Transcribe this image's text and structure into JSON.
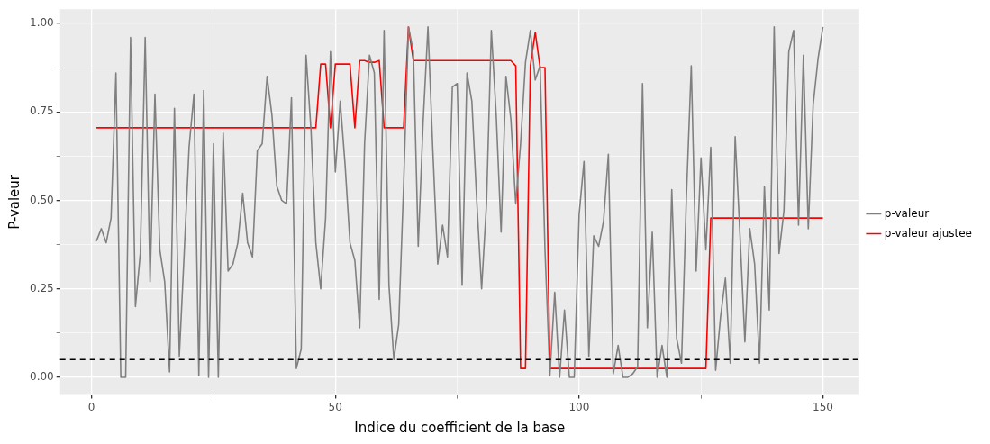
{
  "chart_data": {
    "type": "line",
    "xlabel": "Indice du coefficient de la base",
    "ylabel": "P-valeur",
    "x": [
      1,
      2,
      3,
      4,
      5,
      6,
      7,
      8,
      9,
      10,
      11,
      12,
      13,
      14,
      15,
      16,
      17,
      18,
      19,
      20,
      21,
      22,
      23,
      24,
      25,
      26,
      27,
      28,
      29,
      30,
      31,
      32,
      33,
      34,
      35,
      36,
      37,
      38,
      39,
      40,
      41,
      42,
      43,
      44,
      45,
      46,
      47,
      48,
      49,
      50,
      51,
      52,
      53,
      54,
      55,
      56,
      57,
      58,
      59,
      60,
      61,
      62,
      63,
      64,
      65,
      66,
      67,
      68,
      69,
      70,
      71,
      72,
      73,
      74,
      75,
      76,
      77,
      78,
      79,
      80,
      81,
      82,
      83,
      84,
      85,
      86,
      87,
      88,
      89,
      90,
      91,
      92,
      93,
      94,
      95,
      96,
      97,
      98,
      99,
      100,
      101,
      102,
      103,
      104,
      105,
      106,
      107,
      108,
      109,
      110,
      111,
      112,
      113,
      114,
      115,
      116,
      117,
      118,
      119,
      120,
      121,
      122,
      123,
      124,
      125,
      126,
      127,
      128,
      129,
      130,
      131,
      132,
      133,
      134,
      135,
      136,
      137,
      138,
      139,
      140,
      141,
      142,
      143,
      144,
      145,
      146,
      147,
      148,
      149,
      150
    ],
    "series": [
      {
        "name": "p-valeur",
        "color": "#808080",
        "values": [
          0.385,
          0.42,
          0.38,
          0.45,
          0.86,
          0.0,
          0.0,
          0.96,
          0.2,
          0.35,
          0.96,
          0.27,
          0.8,
          0.36,
          0.27,
          0.015,
          0.76,
          0.06,
          0.35,
          0.65,
          0.8,
          0.005,
          0.81,
          0.0,
          0.66,
          0.0,
          0.69,
          0.3,
          0.32,
          0.38,
          0.52,
          0.38,
          0.34,
          0.64,
          0.66,
          0.85,
          0.74,
          0.54,
          0.5,
          0.49,
          0.79,
          0.025,
          0.08,
          0.91,
          0.7,
          0.38,
          0.25,
          0.45,
          0.92,
          0.58,
          0.78,
          0.6,
          0.38,
          0.33,
          0.14,
          0.66,
          0.91,
          0.86,
          0.22,
          0.98,
          0.26,
          0.05,
          0.15,
          0.54,
          0.99,
          0.92,
          0.37,
          0.72,
          0.99,
          0.64,
          0.32,
          0.43,
          0.34,
          0.82,
          0.83,
          0.26,
          0.86,
          0.78,
          0.5,
          0.25,
          0.49,
          0.98,
          0.74,
          0.41,
          0.85,
          0.73,
          0.49,
          0.66,
          0.89,
          0.98,
          0.84,
          0.88,
          0.36,
          0.005,
          0.24,
          0.0,
          0.19,
          0.0,
          0.0,
          0.46,
          0.61,
          0.06,
          0.4,
          0.37,
          0.44,
          0.63,
          0.01,
          0.09,
          0.0,
          0.0,
          0.01,
          0.03,
          0.83,
          0.14,
          0.41,
          0.0,
          0.09,
          0.0,
          0.53,
          0.11,
          0.04,
          0.51,
          0.88,
          0.3,
          0.62,
          0.36,
          0.65,
          0.02,
          0.17,
          0.28,
          0.04,
          0.68,
          0.4,
          0.1,
          0.42,
          0.32,
          0.04,
          0.54,
          0.19,
          0.99,
          0.35,
          0.47,
          0.92,
          0.98,
          0.43,
          0.91,
          0.42,
          0.77,
          0.9,
          0.99
        ]
      },
      {
        "name": "p-valeur ajustee",
        "color": "#ff0000",
        "values": [
          0.705,
          0.705,
          0.705,
          0.705,
          0.705,
          0.705,
          0.705,
          0.705,
          0.705,
          0.705,
          0.705,
          0.705,
          0.705,
          0.705,
          0.705,
          0.705,
          0.705,
          0.705,
          0.705,
          0.705,
          0.705,
          0.705,
          0.705,
          0.705,
          0.705,
          0.705,
          0.705,
          0.705,
          0.705,
          0.705,
          0.705,
          0.705,
          0.705,
          0.705,
          0.705,
          0.705,
          0.705,
          0.705,
          0.705,
          0.705,
          0.705,
          0.705,
          0.705,
          0.705,
          0.705,
          0.705,
          0.885,
          0.885,
          0.705,
          0.885,
          0.885,
          0.885,
          0.885,
          0.705,
          0.895,
          0.895,
          0.89,
          0.89,
          0.895,
          0.705,
          0.705,
          0.705,
          0.705,
          0.705,
          0.99,
          0.895,
          0.895,
          0.895,
          0.895,
          0.895,
          0.895,
          0.895,
          0.895,
          0.895,
          0.895,
          0.895,
          0.895,
          0.895,
          0.895,
          0.895,
          0.895,
          0.895,
          0.895,
          0.895,
          0.895,
          0.895,
          0.88,
          0.025,
          0.025,
          0.88,
          0.975,
          0.875,
          0.875,
          0.025,
          0.025,
          0.025,
          0.025,
          0.025,
          0.025,
          0.025,
          0.025,
          0.025,
          0.025,
          0.025,
          0.025,
          0.025,
          0.025,
          0.025,
          0.025,
          0.025,
          0.025,
          0.025,
          0.025,
          0.025,
          0.025,
          0.025,
          0.025,
          0.025,
          0.025,
          0.025,
          0.025,
          0.025,
          0.025,
          0.025,
          0.025,
          0.025,
          0.45,
          0.45,
          0.45,
          0.45,
          0.45,
          0.45,
          0.45,
          0.45,
          0.45,
          0.45,
          0.45,
          0.45,
          0.45,
          0.45,
          0.45,
          0.45,
          0.45,
          0.45,
          0.45,
          0.45,
          0.45,
          0.45,
          0.45,
          0.45
        ]
      }
    ],
    "ref_lines": [
      {
        "axis": "y",
        "value": 0.05,
        "color": "#000000",
        "line_style": "dashed"
      }
    ],
    "xlim": [
      -6.45,
      157.45
    ],
    "ylim": [
      -0.05,
      1.04
    ],
    "xticks": [
      0,
      {
        "value": 25,
        "label": null
      },
      50,
      {
        "value": 75,
        "label": null
      },
      100,
      {
        "value": 125,
        "label": null
      },
      150
    ],
    "yticks": [
      {
        "value": 0,
        "label": "0.00"
      },
      {
        "value": 0.125,
        "label": null
      },
      {
        "value": 0.25,
        "label": "0.25"
      },
      {
        "value": 0.375,
        "label": null
      },
      {
        "value": 0.5,
        "label": "0.50"
      },
      {
        "value": 0.625,
        "label": null
      },
      {
        "value": 0.75,
        "label": "0.75"
      },
      {
        "value": 0.875,
        "label": null
      },
      {
        "value": 1,
        "label": "1.00"
      }
    ],
    "grid": true,
    "legend": "right",
    "marker": "none",
    "line_style": "solid"
  }
}
